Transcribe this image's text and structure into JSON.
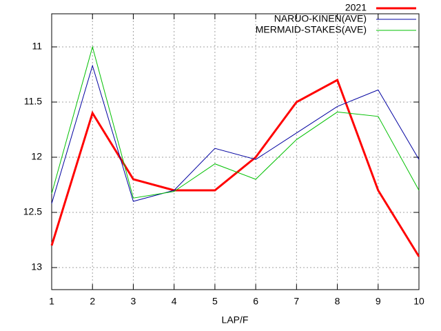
{
  "chart_data": {
    "type": "line",
    "x_label": "LAP/F",
    "x": [
      1,
      2,
      3,
      4,
      5,
      6,
      7,
      8,
      9,
      10
    ],
    "xlim": [
      1,
      10
    ],
    "xticks": [
      1,
      2,
      3,
      4,
      5,
      6,
      7,
      8,
      9,
      10
    ],
    "ylim": [
      13.2,
      10.7
    ],
    "yticks": [
      11,
      11.5,
      12,
      12.5,
      13
    ],
    "grid": true,
    "legend": "top-right",
    "series": [
      {
        "name": "2021",
        "color": "#ff0000",
        "width": 3,
        "values": [
          12.8,
          11.6,
          12.2,
          12.3,
          12.3,
          12.0,
          11.5,
          11.3,
          12.3,
          12.9
        ]
      },
      {
        "name": "NARUO-KINEN(AVE)",
        "color": "#0000a0",
        "width": 1,
        "values": [
          12.42,
          11.17,
          12.4,
          12.3,
          11.92,
          12.02,
          11.78,
          11.54,
          11.39,
          12.02
        ]
      },
      {
        "name": "MERMAID-STAKES(AVE)",
        "color": "#00c000",
        "width": 1,
        "values": [
          12.33,
          11.0,
          12.37,
          12.31,
          12.06,
          12.2,
          11.84,
          11.59,
          11.63,
          12.3
        ]
      }
    ]
  }
}
